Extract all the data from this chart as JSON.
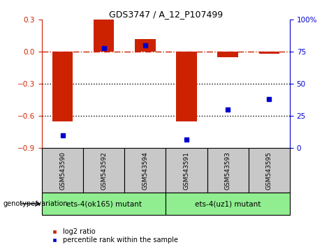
{
  "title": "GDS3747 / A_12_P107499",
  "samples": [
    "GSM543590",
    "GSM543592",
    "GSM543594",
    "GSM543591",
    "GSM543593",
    "GSM543595"
  ],
  "log2_ratio": [
    -0.65,
    0.3,
    0.12,
    -0.65,
    -0.05,
    -0.02
  ],
  "percentile_rank": [
    10,
    78,
    80,
    7,
    30,
    38
  ],
  "group1_label": "ets-4(ok165) mutant",
  "group2_label": "ets-4(uz1) mutant",
  "group1_indices": [
    0,
    1,
    2
  ],
  "group2_indices": [
    3,
    4,
    5
  ],
  "bar_color": "#cc2200",
  "dot_color": "#0000cc",
  "ylim_left": [
    -0.9,
    0.3
  ],
  "ylim_right": [
    0,
    100
  ],
  "yticks_left": [
    -0.9,
    -0.6,
    -0.3,
    0,
    0.3
  ],
  "yticks_right": [
    0,
    25,
    50,
    75,
    100
  ],
  "xlabel": "genotype/variation",
  "legend_red": "log2 ratio",
  "legend_blue": "percentile rank within the sample",
  "sample_box_color": "#c8c8c8",
  "geno_box_color": "#90ee90",
  "bar_width": 0.5
}
